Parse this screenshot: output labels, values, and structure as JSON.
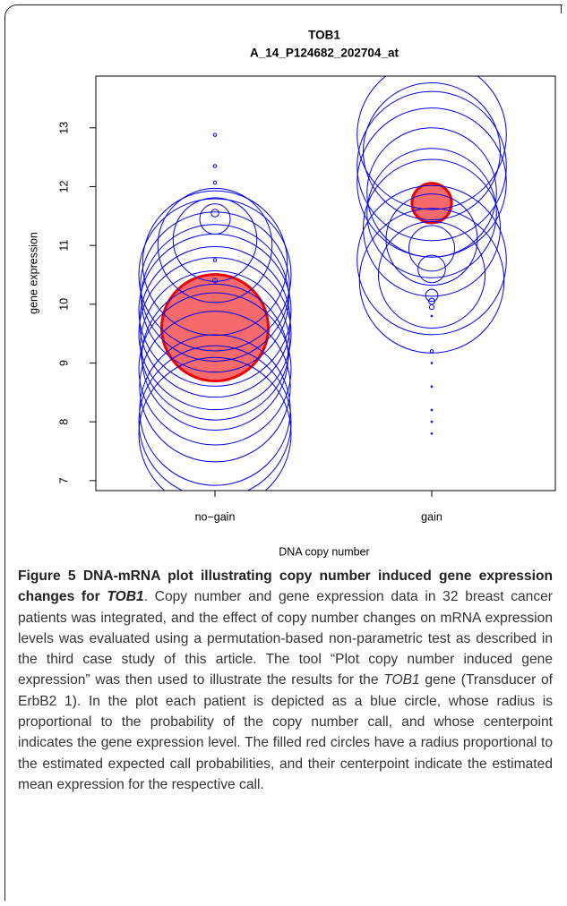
{
  "chart_data": {
    "type": "bubble",
    "title": "TOB1",
    "subtitle": "A_14_P124682_202704_at",
    "xlabel": "DNA copy number",
    "ylabel": "gene expression",
    "categories": [
      "no−gain",
      "gain"
    ],
    "ylim": [
      6.83,
      13.88
    ],
    "yticks": [
      7,
      8,
      9,
      10,
      11,
      12,
      13
    ],
    "groups": [
      {
        "color": "#0000ee",
        "values": [
          12.88,
          12.35,
          12.07,
          11.55,
          11.45,
          10.75,
          10.4,
          11.1,
          11.0,
          10.7,
          10.5,
          10.3,
          10.1,
          9.9,
          9.7,
          9.5,
          9.3,
          9.1,
          8.9,
          8.6,
          8.2,
          8.0,
          7.8
        ],
        "sizes": [
          0.02,
          0.02,
          0.02,
          0.05,
          0.2,
          0.02,
          0.03,
          0.55,
          0.75,
          0.95,
          1.0,
          0.98,
          0.97,
          1.0,
          0.99,
          1.0,
          0.98,
          0.96,
          1.0,
          0.99,
          0.99,
          1.0,
          1.0
        ]
      },
      {
        "color": "#0000ee",
        "values": [
          12.88,
          12.6,
          12.35,
          12.07,
          11.9,
          11.55,
          11.3,
          11.1,
          10.95,
          10.75,
          10.5,
          10.4,
          10.6,
          10.15,
          10.05,
          9.95,
          9.8,
          9.2,
          9.0,
          8.6,
          8.2,
          8.0,
          7.8
        ],
        "sizes": [
          0.98,
          0.9,
          0.98,
          0.98,
          0.85,
          0.85,
          0.9,
          0.6,
          0.3,
          0.98,
          0.7,
          0.95,
          0.18,
          0.08,
          0.04,
          0.03,
          0.01,
          0.02,
          0.01,
          0.01,
          0.01,
          0.01,
          0.01
        ]
      }
    ],
    "means": {
      "color": "#f56a6a",
      "edge_color": "#ee0000",
      "values": [
        9.6,
        11.72
      ],
      "sizes": [
        0.7,
        0.26
      ]
    }
  },
  "caption": {
    "segments": [
      {
        "text": "Figure 5",
        "style": "bold"
      },
      {
        "text": " DNA-mRNA plot illustrating copy number induced gene expression changes for ",
        "style": "bold"
      },
      {
        "text": "TOB1",
        "style": "bold-italic"
      },
      {
        "text": ". Copy number and gene expression data in 32 breast cancer patients was integrated, and the effect of copy number changes on mRNA expression levels was evaluated using a permutation-based non-parametric test as described in the third case study of this article. The tool “Plot copy number induced gene expression” was then used to illustrate the results for the ",
        "style": "normal"
      },
      {
        "text": "TOB1",
        "style": "italic"
      },
      {
        "text": " gene (Transducer of ErbB2 1). In the plot each patient is depicted as a blue circle, whose radius is proportional to the probability of the copy number call, and whose centerpoint indicates the gene expression level. The filled red circles have a radius proportional to the estimated expected call probabilities, and their centerpoint indicate the estimated mean expression for the respective call.",
        "style": "normal"
      }
    ]
  }
}
